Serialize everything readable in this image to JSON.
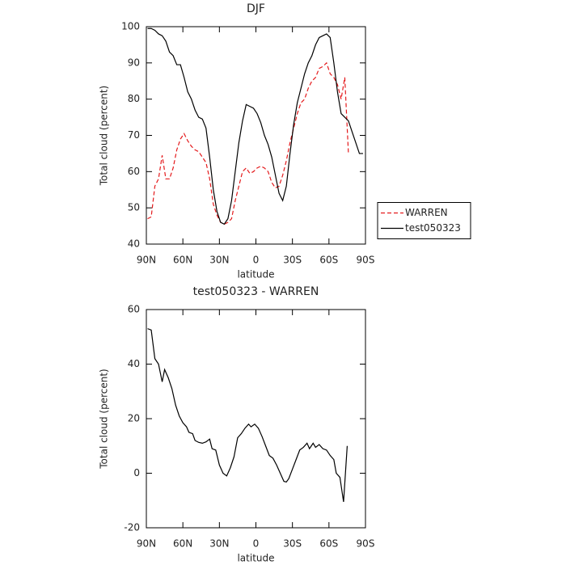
{
  "chart_data": [
    {
      "type": "line",
      "title": "DJF",
      "xlabel": "latitude",
      "ylabel": "Total cloud (percent)",
      "xlim": [
        90,
        -90
      ],
      "xticks": [
        {
          "value": 90,
          "label": "90N"
        },
        {
          "value": 60,
          "label": "60N"
        },
        {
          "value": 30,
          "label": "30N"
        },
        0,
        {
          "value": -30,
          "label": "30S"
        },
        {
          "value": -60,
          "label": "60S"
        },
        {
          "value": -90,
          "label": "90S"
        }
      ],
      "ylim": [
        40,
        100
      ],
      "yticks": [
        40,
        50,
        60,
        70,
        80,
        90,
        100
      ],
      "legend": "outside-right",
      "series": [
        {
          "name": "WARREN",
          "color": "#e41a1c",
          "dashed": true,
          "x": [
            89,
            86,
            83,
            80,
            77,
            74,
            71,
            68,
            65,
            62,
            59,
            56,
            53,
            50,
            47,
            44,
            41,
            38,
            35,
            32,
            29,
            26,
            23,
            20,
            17,
            14,
            11,
            8,
            5,
            2,
            -1,
            -4,
            -7,
            -10,
            -13,
            -16,
            -19,
            -22,
            -25,
            -28,
            -31,
            -34,
            -37,
            -40,
            -43,
            -46,
            -49,
            -52,
            -55,
            -58,
            -61,
            -64,
            -67,
            -70,
            -73,
            -76
          ],
          "values": [
            47,
            47.5,
            56,
            58,
            64.5,
            58,
            58,
            61,
            66,
            69,
            70.5,
            68.5,
            67,
            66,
            65.5,
            64,
            62.5,
            58,
            51,
            48,
            46,
            45.5,
            46,
            47,
            52,
            56,
            60,
            61,
            59.5,
            60,
            61,
            61.5,
            61,
            60,
            57,
            55.5,
            56,
            59,
            63,
            68,
            72,
            76,
            79,
            80,
            83,
            85,
            86,
            88.5,
            89,
            90,
            87,
            86,
            84,
            80,
            86,
            65
          ]
        },
        {
          "name": "test050323",
          "color": "#000000",
          "dashed": false,
          "x": [
            89,
            86,
            83,
            80,
            77,
            74,
            71,
            68,
            65,
            62,
            59,
            56,
            53,
            50,
            47,
            44,
            41,
            38,
            35,
            32,
            29,
            26,
            23,
            20,
            17,
            14,
            11,
            8,
            5,
            2,
            -1,
            -4,
            -7,
            -10,
            -13,
            -16,
            -19,
            -22,
            -25,
            -28,
            -31,
            -34,
            -37,
            -40,
            -43,
            -46,
            -49,
            -52,
            -55,
            -58,
            -61,
            -64,
            -67,
            -70,
            -73,
            -76,
            -79,
            -82,
            -85,
            -88
          ],
          "values": [
            99.5,
            99.5,
            99,
            98,
            97.5,
            96,
            93,
            92,
            89.5,
            89.5,
            86,
            82,
            80,
            77,
            75,
            74.5,
            72,
            64,
            55,
            49,
            46,
            45.5,
            47,
            52,
            60,
            68,
            74,
            78.5,
            78,
            77.5,
            76,
            73.5,
            70,
            67.5,
            64,
            59,
            54,
            52,
            56,
            65,
            73,
            79,
            83,
            87,
            90,
            92,
            95,
            97,
            97.5,
            98,
            97,
            90,
            82,
            76,
            75,
            74,
            71,
            68,
            65,
            65
          ]
        }
      ]
    },
    {
      "type": "line",
      "title": "test050323 - WARREN",
      "xlabel": "latitude",
      "ylabel": "Total cloud (percent)",
      "xlim": [
        90,
        -90
      ],
      "xticks": [
        {
          "value": 90,
          "label": "90N"
        },
        {
          "value": 60,
          "label": "60N"
        },
        {
          "value": 30,
          "label": "30N"
        },
        0,
        {
          "value": -30,
          "label": "30S"
        },
        {
          "value": -60,
          "label": "60S"
        },
        {
          "value": -90,
          "label": "90S"
        }
      ],
      "ylim": [
        -20,
        60
      ],
      "yticks": [
        -20,
        0,
        20,
        40,
        60
      ],
      "series": [
        {
          "color": "#000000",
          "dashed": false,
          "x": [
            89,
            86,
            83,
            80,
            77,
            75,
            72,
            69,
            66,
            63,
            60,
            57,
            55,
            52,
            50,
            47,
            44,
            41,
            38,
            36,
            33,
            30,
            27,
            24,
            21,
            18,
            15,
            12,
            9,
            6,
            4,
            1,
            -2,
            -5,
            -8,
            -11,
            -14,
            -17,
            -20,
            -23,
            -25,
            -27,
            -30,
            -33,
            -36,
            -39,
            -42,
            -44,
            -47,
            -49,
            -52,
            -55,
            -58,
            -61,
            -64,
            -66,
            -69,
            -72,
            -75
          ],
          "values": [
            53,
            52.5,
            42,
            40,
            33.5,
            38,
            35,
            31,
            25,
            21,
            18.5,
            17,
            15,
            14.5,
            12,
            11.3,
            11,
            11.5,
            12.5,
            9,
            8.5,
            3,
            0,
            -1,
            2,
            6,
            13,
            14.5,
            16.5,
            18,
            17,
            18,
            16.5,
            13.5,
            10,
            6.5,
            5.5,
            3,
            0,
            -3,
            -3.2,
            -2,
            1.5,
            5,
            8.5,
            9.5,
            11,
            9,
            11,
            9.5,
            10.5,
            9,
            8.5,
            6.5,
            5,
            0,
            -1.5,
            -10.5,
            10
          ]
        }
      ]
    }
  ]
}
